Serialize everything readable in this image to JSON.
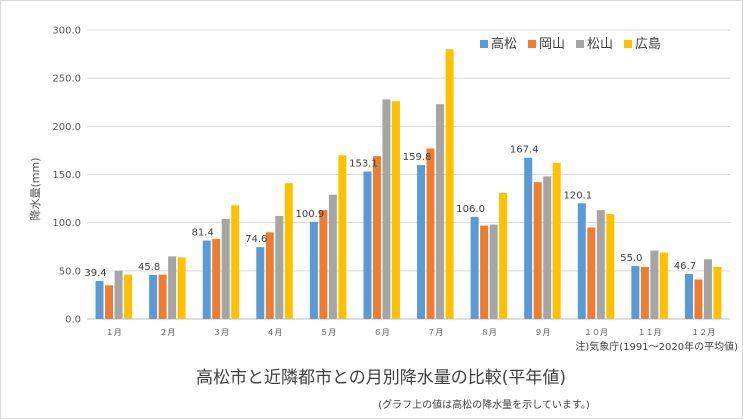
{
  "chart_data": {
    "type": "bar",
    "title": "高松市と近隣都市との月別降水量の比較(平年値)",
    "subtitle": "(グラフ上の値は高松の降水量を示しています。)",
    "ylabel": "降水量(mm)",
    "note": "注)気象庁(1991～2020年の平均値)",
    "categories": [
      "１月",
      "２月",
      "３月",
      "４月",
      "５月",
      "６月",
      "７月",
      "８月",
      "９月",
      "１０月",
      "１１月",
      "１２月"
    ],
    "ylim": [
      0,
      300
    ],
    "yticks": [
      "0.0",
      "50.0",
      "100.0",
      "150.0",
      "200.0",
      "250.0",
      "300.0"
    ],
    "grid": true,
    "legend_position": "top-right",
    "series": [
      {
        "name": "高松",
        "color": "#5b9bd5",
        "values": [
          39.4,
          45.8,
          81.4,
          74.6,
          100.9,
          153.1,
          159.8,
          106.0,
          167.4,
          120.1,
          55.0,
          46.7
        ]
      },
      {
        "name": "岡山",
        "color": "#ed7d31",
        "values": [
          35.0,
          46.0,
          83.0,
          90.0,
          113.0,
          169.0,
          177.0,
          97.0,
          142.0,
          95.0,
          54.0,
          41.0
        ]
      },
      {
        "name": "松山",
        "color": "#a5a5a5",
        "values": [
          50.0,
          65.0,
          104.0,
          107.0,
          129.0,
          228.0,
          223.0,
          98.0,
          148.0,
          113.0,
          71.0,
          62.0
        ]
      },
      {
        "name": "広島",
        "color": "#ffc000",
        "values": [
          46.0,
          64.0,
          118.0,
          141.0,
          170.0,
          226.0,
          280.0,
          131.0,
          162.0,
          109.0,
          69.0,
          54.0
        ]
      }
    ],
    "data_labels": [
      "39.4",
      "45.8",
      "81.4",
      "74.6",
      "100.9",
      "153.1",
      "159.8",
      "106.0",
      "167.4",
      "120.1",
      "55.0",
      "46.7"
    ]
  }
}
